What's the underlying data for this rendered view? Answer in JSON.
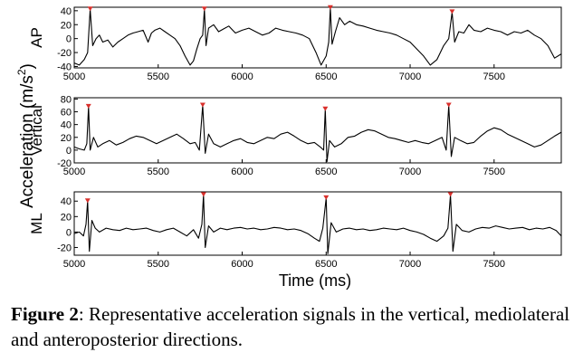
{
  "figure": {
    "ylabel_common": "Acceleration (m/s",
    "ylabel_exp": "2",
    "ylabel_close": ")",
    "xlabel": "Time (ms)",
    "caption_label": "Figure 2",
    "caption_text": ": Representative acceleration signals in the vertical, mediolateral and anteroposterior directions."
  },
  "chart_data": [
    {
      "type": "line",
      "ylabel": "AP",
      "xlim": [
        5000,
        7900
      ],
      "ylim": [
        -42,
        45
      ],
      "xticks": [
        5000,
        5500,
        6000,
        6500,
        7000,
        7500
      ],
      "yticks": [
        40,
        20,
        0,
        -20,
        -40
      ],
      "grid": false,
      "peaks": [
        {
          "x": 5095,
          "y": 42
        },
        {
          "x": 5775,
          "y": 42
        },
        {
          "x": 6525,
          "y": 44
        },
        {
          "x": 7250,
          "y": 38
        }
      ],
      "series": [
        {
          "x": [
            5000,
            5030,
            5060,
            5080,
            5095,
            5110,
            5130,
            5150,
            5170,
            5200,
            5230,
            5260,
            5290,
            5320,
            5350,
            5380,
            5410,
            5440,
            5460,
            5480,
            5510,
            5540,
            5570,
            5600,
            5630,
            5660,
            5690,
            5710,
            5730,
            5750,
            5765,
            5775,
            5785,
            5800,
            5830,
            5860,
            5890,
            5920,
            5960,
            6000,
            6040,
            6080,
            6120,
            6160,
            6200,
            6240,
            6280,
            6320,
            6360,
            6400,
            6440,
            6470,
            6500,
            6515,
            6525,
            6535,
            6555,
            6580,
            6610,
            6640,
            6680,
            6720,
            6760,
            6800,
            6840,
            6880,
            6920,
            6960,
            7000,
            7040,
            7080,
            7120,
            7160,
            7200,
            7230,
            7250,
            7265,
            7290,
            7320,
            7350,
            7380,
            7420,
            7460,
            7500,
            7540,
            7580,
            7620,
            7660,
            7700,
            7740,
            7780,
            7820,
            7860,
            7900
          ],
          "y": [
            -35,
            -38,
            -30,
            -20,
            42,
            -10,
            0,
            5,
            -5,
            -2,
            -12,
            -5,
            0,
            5,
            8,
            10,
            12,
            -5,
            8,
            12,
            15,
            10,
            5,
            0,
            -10,
            -25,
            -38,
            -32,
            -15,
            0,
            5,
            42,
            -10,
            15,
            20,
            10,
            14,
            18,
            8,
            12,
            15,
            10,
            5,
            8,
            15,
            12,
            10,
            8,
            5,
            0,
            -20,
            -38,
            -25,
            -5,
            44,
            -8,
            10,
            30,
            20,
            25,
            20,
            18,
            15,
            12,
            10,
            8,
            5,
            0,
            -5,
            -15,
            -25,
            -38,
            -30,
            -10,
            0,
            38,
            -5,
            10,
            8,
            20,
            12,
            10,
            15,
            12,
            10,
            5,
            10,
            8,
            12,
            5,
            0,
            -10,
            -28,
            -22
          ]
        }
      ]
    },
    {
      "type": "line",
      "ylabel": "Vertical",
      "xlim": [
        5000,
        7900
      ],
      "ylim": [
        -20,
        82
      ],
      "xticks": [
        5000,
        5500,
        6000,
        6500,
        7000,
        7500
      ],
      "yticks": [
        80,
        60,
        40,
        20,
        0,
        -20
      ],
      "grid": false,
      "peaks": [
        {
          "x": 5085,
          "y": 68
        },
        {
          "x": 5765,
          "y": 70
        },
        {
          "x": 6495,
          "y": 64
        },
        {
          "x": 7230,
          "y": 70
        }
      ],
      "series": [
        {
          "x": [
            5000,
            5030,
            5060,
            5075,
            5085,
            5095,
            5115,
            5140,
            5170,
            5210,
            5250,
            5290,
            5330,
            5370,
            5410,
            5450,
            5490,
            5530,
            5570,
            5610,
            5650,
            5690,
            5720,
            5745,
            5765,
            5780,
            5800,
            5830,
            5870,
            5910,
            5950,
            5990,
            6030,
            6070,
            6110,
            6150,
            6190,
            6230,
            6270,
            6310,
            6350,
            6390,
            6430,
            6465,
            6485,
            6495,
            6505,
            6520,
            6550,
            6590,
            6630,
            6670,
            6710,
            6750,
            6790,
            6830,
            6870,
            6910,
            6950,
            6990,
            7030,
            7070,
            7110,
            7150,
            7190,
            7215,
            7230,
            7245,
            7265,
            7300,
            7340,
            7380,
            7420,
            7460,
            7500,
            7540,
            7580,
            7620,
            7660,
            7700,
            7740,
            7780,
            7820,
            7860,
            7900
          ],
          "y": [
            5,
            2,
            0,
            10,
            68,
            0,
            20,
            5,
            10,
            15,
            8,
            12,
            18,
            22,
            20,
            15,
            10,
            15,
            20,
            25,
            18,
            10,
            12,
            0,
            70,
            -5,
            25,
            10,
            5,
            10,
            15,
            18,
            12,
            10,
            15,
            20,
            18,
            25,
            28,
            22,
            15,
            10,
            12,
            5,
            0,
            64,
            -18,
            15,
            5,
            10,
            20,
            22,
            28,
            32,
            30,
            25,
            20,
            18,
            15,
            12,
            15,
            12,
            10,
            15,
            20,
            0,
            70,
            -10,
            20,
            15,
            10,
            12,
            22,
            30,
            35,
            32,
            25,
            20,
            15,
            10,
            5,
            8,
            15,
            22,
            28
          ]
        }
      ]
    },
    {
      "type": "line",
      "ylabel": "ML",
      "xlim": [
        5000,
        7900
      ],
      "ylim": [
        -30,
        52
      ],
      "xticks": [
        5000,
        5500,
        6000,
        6500,
        7000,
        7500
      ],
      "yticks": [
        40,
        20,
        0,
        -20
      ],
      "grid": false,
      "peaks": [
        {
          "x": 5080,
          "y": 40
        },
        {
          "x": 5770,
          "y": 48
        },
        {
          "x": 6500,
          "y": 44
        },
        {
          "x": 7240,
          "y": 48
        }
      ],
      "series": [
        {
          "x": [
            5000,
            5030,
            5055,
            5070,
            5080,
            5090,
            5105,
            5125,
            5150,
            5190,
            5230,
            5270,
            5310,
            5350,
            5390,
            5430,
            5470,
            5510,
            5550,
            5590,
            5630,
            5670,
            5710,
            5740,
            5760,
            5770,
            5780,
            5800,
            5830,
            5870,
            5910,
            5950,
            5990,
            6030,
            6070,
            6110,
            6150,
            6190,
            6230,
            6270,
            6310,
            6350,
            6390,
            6430,
            6460,
            6480,
            6500,
            6510,
            6530,
            6560,
            6600,
            6640,
            6680,
            6720,
            6760,
            6800,
            6840,
            6880,
            6920,
            6960,
            7000,
            7040,
            7080,
            7120,
            7160,
            7200,
            7225,
            7240,
            7255,
            7275,
            7310,
            7350,
            7390,
            7430,
            7470,
            7510,
            7550,
            7590,
            7630,
            7670,
            7710,
            7750,
            7790,
            7830,
            7870,
            7900
          ],
          "y": [
            -2,
            0,
            -5,
            10,
            40,
            -25,
            15,
            5,
            0,
            5,
            3,
            2,
            5,
            3,
            4,
            5,
            2,
            0,
            3,
            5,
            0,
            -5,
            3,
            -8,
            10,
            48,
            -20,
            8,
            0,
            5,
            3,
            5,
            6,
            4,
            5,
            3,
            4,
            6,
            5,
            3,
            4,
            2,
            -2,
            -8,
            -12,
            5,
            44,
            -28,
            12,
            0,
            4,
            5,
            3,
            4,
            2,
            3,
            5,
            4,
            3,
            5,
            2,
            0,
            -3,
            -8,
            -12,
            -5,
            5,
            48,
            -25,
            10,
            2,
            0,
            4,
            6,
            5,
            8,
            6,
            4,
            5,
            6,
            3,
            5,
            4,
            6,
            2,
            -5
          ]
        }
      ]
    }
  ]
}
